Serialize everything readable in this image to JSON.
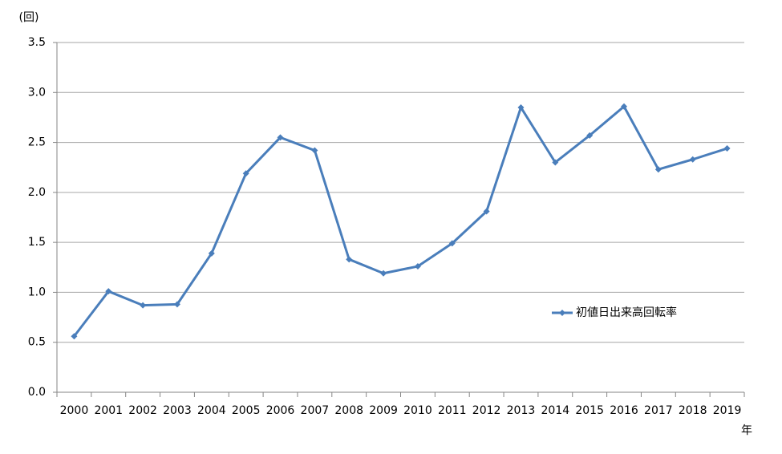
{
  "chart_data": {
    "type": "line",
    "y_label": "(回)",
    "x_label": "年",
    "categories": [
      "2000",
      "2001",
      "2002",
      "2003",
      "2004",
      "2005",
      "2006",
      "2007",
      "2008",
      "2009",
      "2010",
      "2011",
      "2012",
      "2013",
      "2014",
      "2015",
      "2016",
      "2017",
      "2018",
      "2019"
    ],
    "series": [
      {
        "name": "初値日出来高回転率",
        "color": "#4a7ebb",
        "values": [
          0.56,
          1.01,
          0.87,
          0.88,
          1.39,
          2.19,
          2.55,
          2.42,
          1.33,
          1.19,
          1.26,
          1.49,
          1.81,
          2.85,
          2.3,
          2.57,
          2.86,
          2.23,
          2.33,
          2.44
        ]
      }
    ],
    "ylim": [
      0,
      3.5
    ],
    "yticks": [
      {
        "value": 0,
        "label": "0.0"
      },
      0.5,
      {
        "value": 1,
        "label": "1.0"
      },
      1.5,
      {
        "value": 2,
        "label": "2.0"
      },
      2.5,
      {
        "value": 3,
        "label": "3.0"
      },
      3.5
    ],
    "grid": true
  }
}
